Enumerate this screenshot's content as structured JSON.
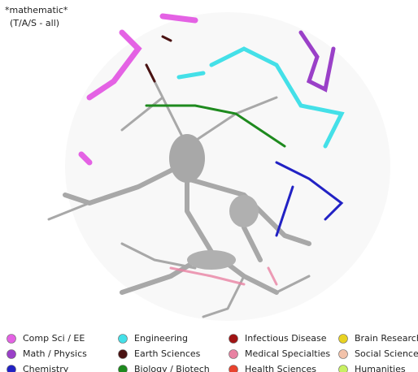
{
  "header": {
    "title": "*mathematic*",
    "subtitle": "(T/A/S - all)"
  },
  "legend": [
    {
      "label": "Comp Sci / EE",
      "color": "#e462e4"
    },
    {
      "label": "Math / Physics",
      "color": "#9a40c8"
    },
    {
      "label": "Chemistry",
      "color": "#2222c4"
    },
    {
      "label": "Engineering",
      "color": "#44e0e8"
    },
    {
      "label": "Earth Sciences",
      "color": "#4a1212"
    },
    {
      "label": "Biology / Biotech",
      "color": "#1e8a1e"
    },
    {
      "label": "Infectious Disease",
      "color": "#a01414"
    },
    {
      "label": "Medical Specialties",
      "color": "#e882a2"
    },
    {
      "label": "Health Sciences",
      "color": "#e8432e"
    },
    {
      "label": "Brain Research",
      "color": "#e8d222"
    },
    {
      "label": "Social Sciences",
      "color": "#f2c2aa"
    },
    {
      "label": "Humanities",
      "color": "#c8f062"
    }
  ]
}
